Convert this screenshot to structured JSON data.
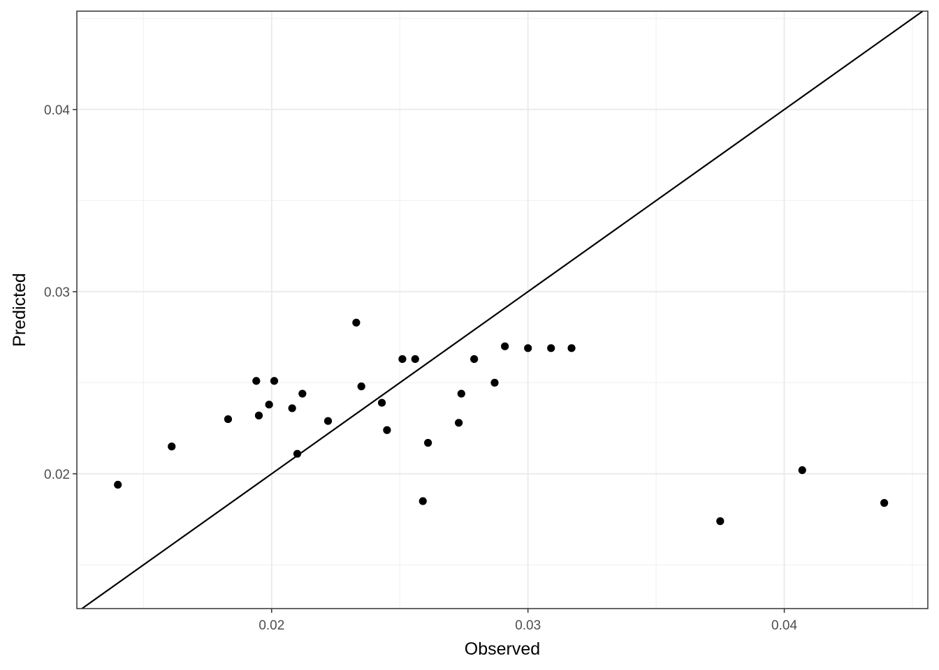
{
  "chart_data": {
    "type": "scatter",
    "xlabel": "Observed",
    "ylabel": "Predicted",
    "xlim": [
      0.0124,
      0.0456
    ],
    "ylim": [
      0.0126,
      0.0454
    ],
    "x_ticks": [
      0.02,
      0.03,
      0.04
    ],
    "x_tick_labels": [
      "0.02",
      "0.03",
      "0.04"
    ],
    "y_ticks": [
      0.02,
      0.03,
      0.04
    ],
    "y_tick_labels": [
      "0.02",
      "0.03",
      "0.04"
    ],
    "x_minor_ticks": [
      0.015,
      0.025,
      0.035,
      0.045
    ],
    "y_minor_ticks": [
      0.015,
      0.025,
      0.035,
      0.045
    ],
    "grid": true,
    "reference_line": "y = x",
    "points": [
      {
        "x": 0.014,
        "y": 0.0194
      },
      {
        "x": 0.0161,
        "y": 0.0215
      },
      {
        "x": 0.0183,
        "y": 0.023
      },
      {
        "x": 0.0194,
        "y": 0.0251
      },
      {
        "x": 0.0195,
        "y": 0.0232
      },
      {
        "x": 0.0199,
        "y": 0.0238
      },
      {
        "x": 0.0201,
        "y": 0.0251
      },
      {
        "x": 0.0208,
        "y": 0.0236
      },
      {
        "x": 0.021,
        "y": 0.0211
      },
      {
        "x": 0.0212,
        "y": 0.0244
      },
      {
        "x": 0.0222,
        "y": 0.0229
      },
      {
        "x": 0.0233,
        "y": 0.0283
      },
      {
        "x": 0.0235,
        "y": 0.0248
      },
      {
        "x": 0.0243,
        "y": 0.0239
      },
      {
        "x": 0.0245,
        "y": 0.0224
      },
      {
        "x": 0.0251,
        "y": 0.0263
      },
      {
        "x": 0.0256,
        "y": 0.0263
      },
      {
        "x": 0.0259,
        "y": 0.0185
      },
      {
        "x": 0.0261,
        "y": 0.0217
      },
      {
        "x": 0.0273,
        "y": 0.0228
      },
      {
        "x": 0.0274,
        "y": 0.0244
      },
      {
        "x": 0.0279,
        "y": 0.0263
      },
      {
        "x": 0.0287,
        "y": 0.025
      },
      {
        "x": 0.0291,
        "y": 0.027
      },
      {
        "x": 0.03,
        "y": 0.0269
      },
      {
        "x": 0.0309,
        "y": 0.0269
      },
      {
        "x": 0.0317,
        "y": 0.0269
      },
      {
        "x": 0.0375,
        "y": 0.0174
      },
      {
        "x": 0.0407,
        "y": 0.0202
      },
      {
        "x": 0.0439,
        "y": 0.0184
      }
    ]
  }
}
